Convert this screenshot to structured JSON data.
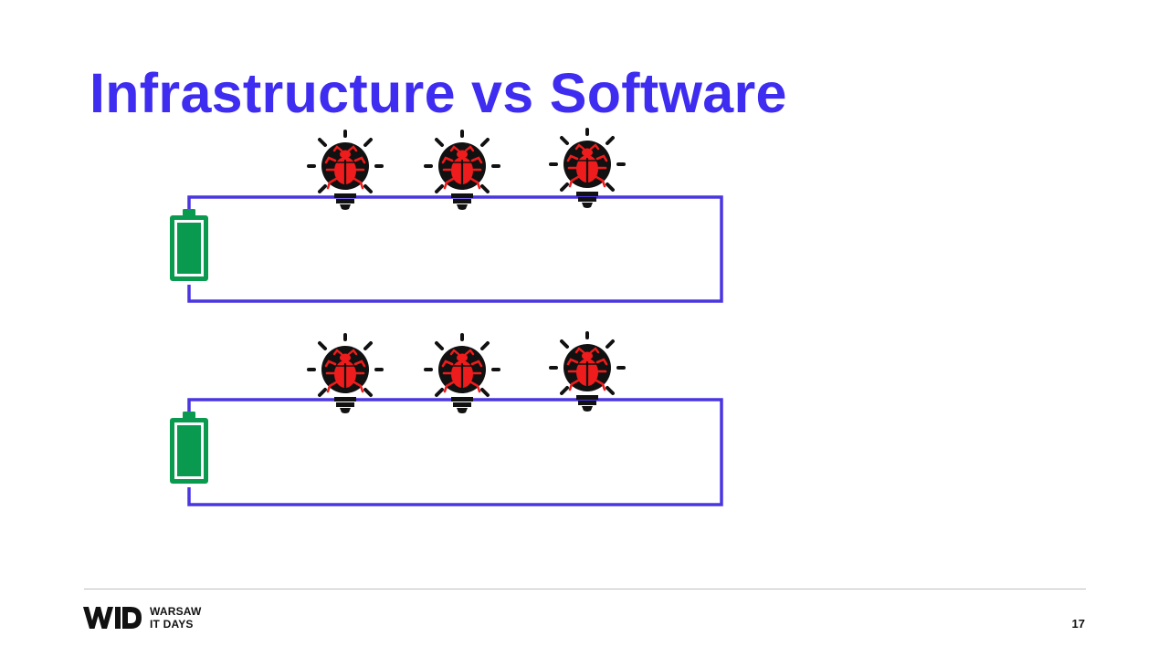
{
  "slide": {
    "title": "Infrastructure vs Software",
    "page_number": "17"
  },
  "footer": {
    "logo_text": "WID",
    "org_line1": "WARSAW",
    "org_line2": "IT DAYS"
  },
  "diagram": {
    "circuits": [
      {
        "name": "circuit-top",
        "battery": "battery-icon",
        "bulbs": [
          "bug-bulb-icon",
          "bug-bulb-icon",
          "bug-bulb-icon"
        ]
      },
      {
        "name": "circuit-bottom",
        "battery": "battery-icon",
        "bulbs": [
          "bug-bulb-icon",
          "bug-bulb-icon",
          "bug-bulb-icon"
        ]
      }
    ]
  },
  "colors": {
    "title": "#3e2cf0",
    "wire": "#4a36e0",
    "battery": "#0a9a4f",
    "bulb": "#111111",
    "bug": "#ee1c1c"
  }
}
